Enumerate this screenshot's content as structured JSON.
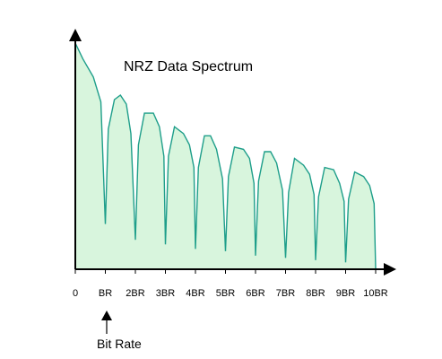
{
  "chart_data": {
    "type": "area",
    "title": "NRZ Data Spectrum",
    "xlabel": "",
    "ylabel": "",
    "x_tick_labels": [
      "0",
      "BR",
      "2BR",
      "3BR",
      "4BR",
      "5BR",
      "6BR",
      "7BR",
      "8BR",
      "9BR",
      "10BR"
    ],
    "xlim": [
      0,
      10
    ],
    "ylim": [
      0,
      1
    ],
    "grid": false,
    "series": [
      {
        "x": [
          0,
          0.25,
          0.6,
          0.85,
          1.0,
          1.1,
          1.3,
          1.5,
          1.7,
          1.85,
          2.0,
          2.1,
          2.3,
          2.6,
          2.8,
          2.95,
          3.0,
          3.1,
          3.3,
          3.6,
          3.8,
          3.95,
          4.0,
          4.1,
          4.3,
          4.5,
          4.7,
          4.9,
          5.0,
          5.1,
          5.3,
          5.6,
          5.8,
          5.95,
          6.0,
          6.1,
          6.3,
          6.5,
          6.7,
          6.9,
          7.0,
          7.1,
          7.3,
          7.6,
          7.8,
          7.95,
          8.0,
          8.1,
          8.3,
          8.6,
          8.8,
          8.95,
          9.0,
          9.1,
          9.3,
          9.6,
          9.8,
          9.95,
          10.0
        ],
        "y": [
          1.0,
          0.93,
          0.85,
          0.74,
          0.2,
          0.62,
          0.75,
          0.77,
          0.73,
          0.6,
          0.13,
          0.55,
          0.69,
          0.69,
          0.63,
          0.5,
          0.11,
          0.5,
          0.63,
          0.6,
          0.55,
          0.45,
          0.09,
          0.45,
          0.59,
          0.59,
          0.53,
          0.4,
          0.08,
          0.41,
          0.54,
          0.53,
          0.49,
          0.38,
          0.06,
          0.39,
          0.52,
          0.52,
          0.47,
          0.35,
          0.05,
          0.34,
          0.49,
          0.46,
          0.42,
          0.33,
          0.04,
          0.32,
          0.45,
          0.44,
          0.38,
          0.3,
          0.03,
          0.31,
          0.43,
          0.41,
          0.37,
          0.29,
          0.0
        ],
        "fill_color": "#d8f5dd",
        "line_color": "#1e9e8a"
      }
    ],
    "annotations": [
      {
        "text": "Bit Rate",
        "x": 1
      }
    ]
  }
}
